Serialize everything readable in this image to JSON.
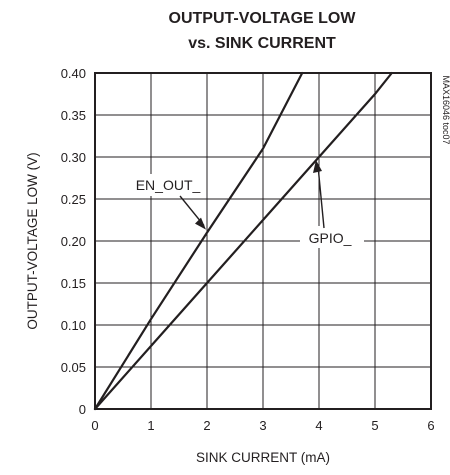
{
  "chart_data": {
    "type": "line",
    "title": [
      "OUTPUT-VOLTAGE LOW",
      "vs. SINK CURRENT"
    ],
    "xlabel": "SINK CURRENT (mA)",
    "ylabel": "OUTPUT-VOLTAGE LOW (V)",
    "xlim": [
      0,
      6
    ],
    "ylim": [
      0,
      0.4
    ],
    "x_ticks": [
      0,
      1,
      2,
      3,
      4,
      5,
      6
    ],
    "y_ticks": [
      0,
      0.05,
      0.1,
      0.15,
      0.2,
      0.25,
      0.3,
      0.35,
      0.4
    ],
    "x_tick_labels": [
      "0",
      "1",
      "2",
      "3",
      "4",
      "5",
      "6"
    ],
    "y_tick_labels": [
      "0",
      "0.05",
      "0.10",
      "0.15",
      "0.20",
      "0.25",
      "0.30",
      "0.35",
      "0.40"
    ],
    "grid": true,
    "series": [
      {
        "name": "EN_OUT_",
        "x": [
          0,
          1,
          2,
          3,
          3.7
        ],
        "y": [
          0,
          0.107,
          0.21,
          0.31,
          0.4
        ]
      },
      {
        "name": "GPIO_",
        "x": [
          0,
          1,
          2,
          3,
          4,
          5,
          5.3
        ],
        "y": [
          0,
          0.075,
          0.15,
          0.225,
          0.3,
          0.375,
          0.4
        ]
      }
    ],
    "annotations": [
      {
        "text": "EN_OUT_",
        "points_to": [
          2,
          0.21
        ]
      },
      {
        "text": "GPIO_",
        "points_to": [
          4,
          0.3
        ]
      }
    ],
    "side_code": "MAX16046 toc07"
  }
}
